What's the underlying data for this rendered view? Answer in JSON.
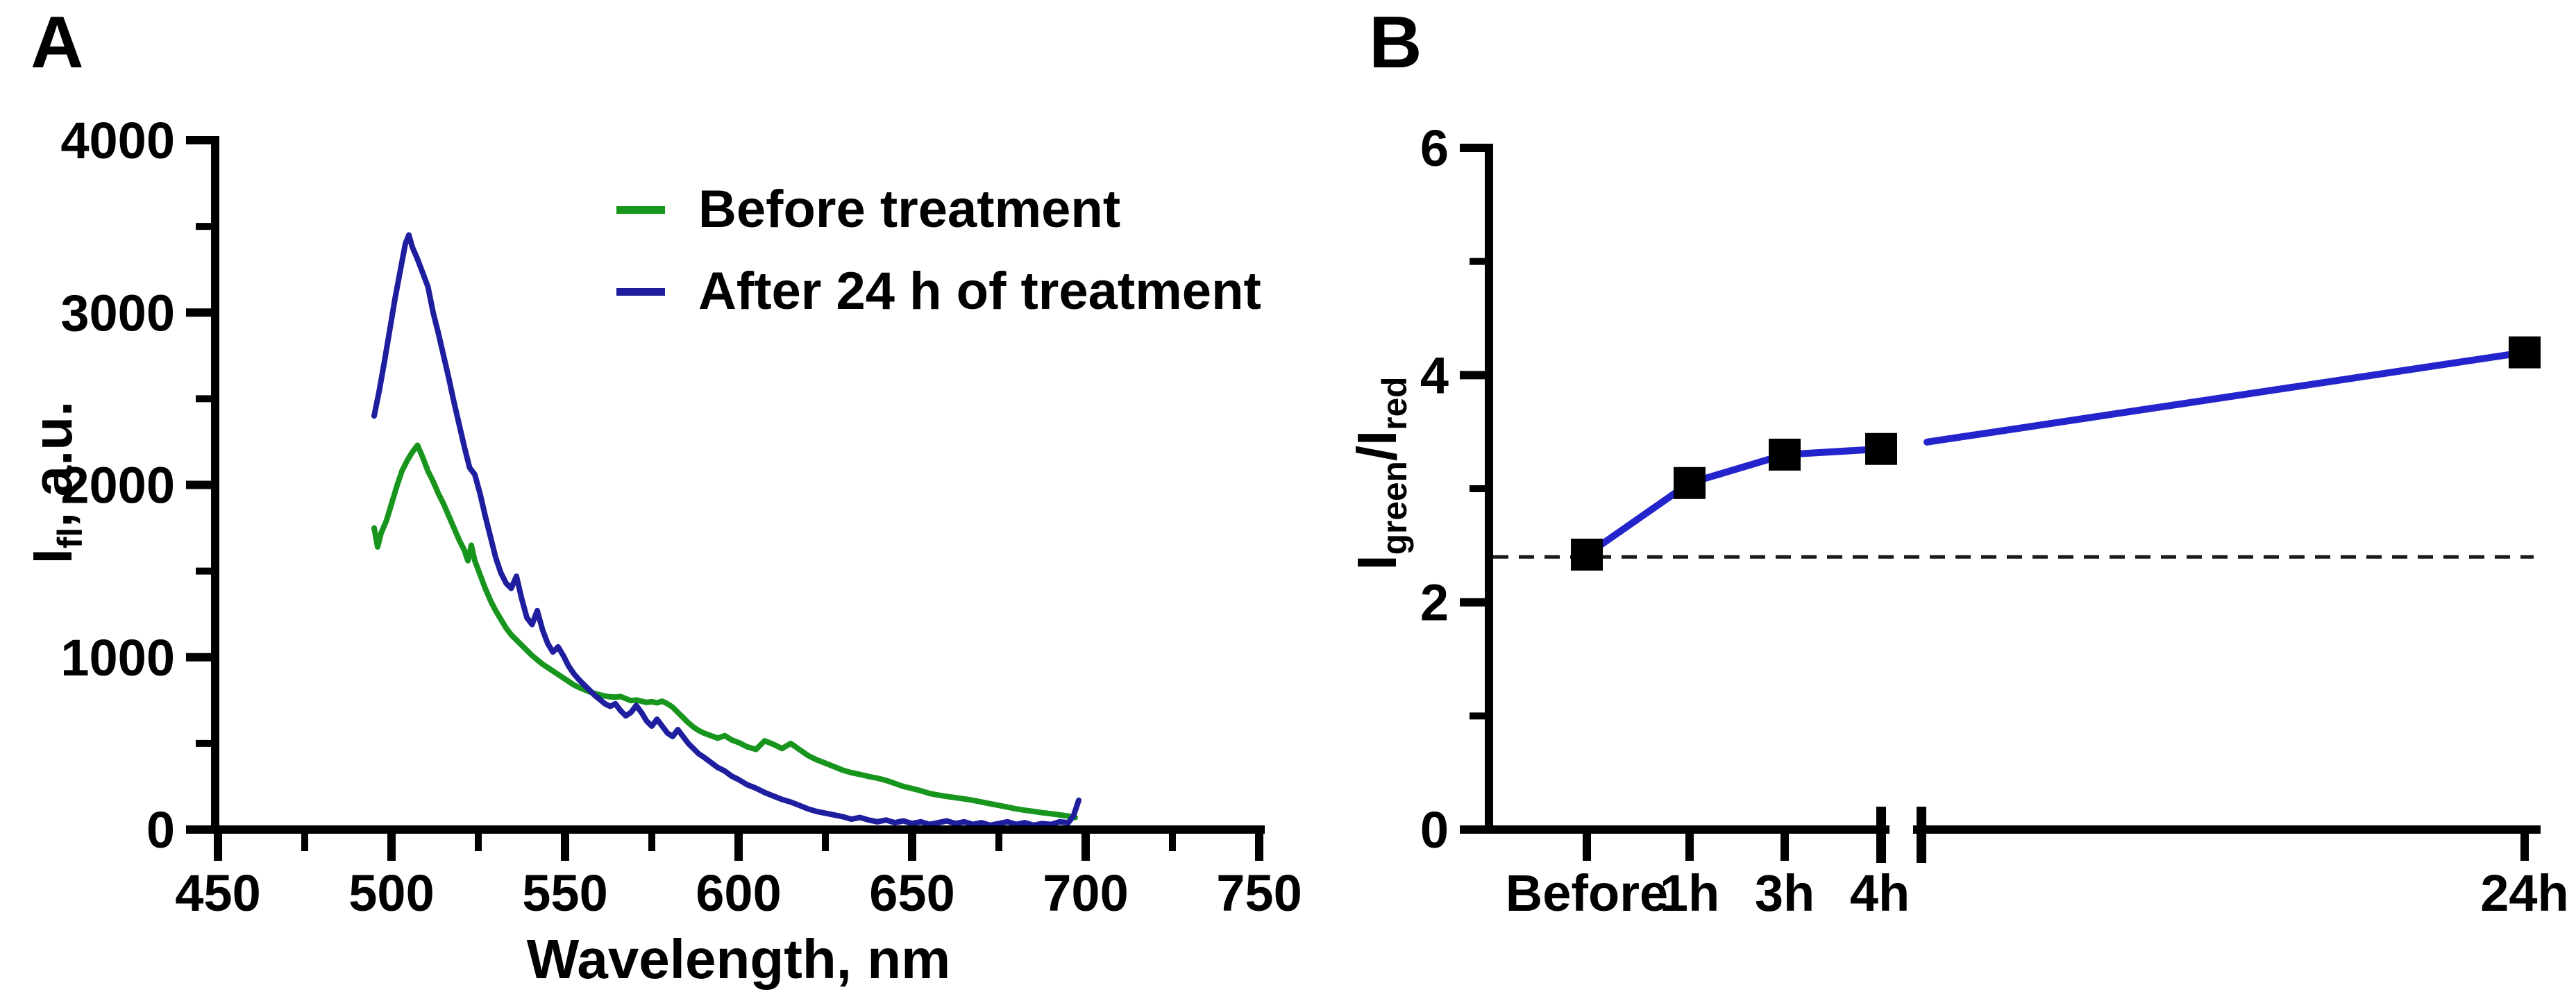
{
  "figure": {
    "background": "#ffffff",
    "text_color": "#000000"
  },
  "panels": {
    "a": {
      "label": "A",
      "y_axis_title": {
        "base": "I",
        "sub": "fl",
        "rest": ", a.u."
      },
      "x_axis_title": "Wavelength, nm",
      "legend": [
        {
          "label": "Before treatment",
          "color": "#17951d"
        },
        {
          "label": "After 24 h of treatment",
          "color": "#1e1e9e"
        }
      ]
    },
    "b": {
      "label": "B",
      "y_axis_title": {
        "i1": "I",
        "sub1": "green",
        "i2": "/I",
        "sub2": "red"
      }
    }
  },
  "chart_data": [
    {
      "panel": "A",
      "type": "line",
      "xlabel": "Wavelength, nm",
      "ylabel": "I_fl, a.u.",
      "xlim": [
        450,
        750
      ],
      "ylim": [
        0,
        4000
      ],
      "x_ticks": [
        450,
        500,
        550,
        600,
        650,
        700,
        750
      ],
      "x_minor_ticks": [
        475,
        525,
        575,
        625,
        675,
        725
      ],
      "y_ticks": [
        0,
        1000,
        2000,
        3000,
        4000
      ],
      "y_minor_ticks": [
        500,
        1500,
        2500,
        3500
      ],
      "grid": false,
      "legend_position": "top-right-inside",
      "series": [
        {
          "name": "Before treatment",
          "color": "#17951d",
          "linewidth": 8,
          "points": [
            [
              495,
              1750
            ],
            [
              496,
              1640
            ],
            [
              497,
              1720
            ],
            [
              498.5,
              1790
            ],
            [
              500,
              1890
            ],
            [
              501.5,
              1990
            ],
            [
              503,
              2080
            ],
            [
              504.5,
              2140
            ],
            [
              506,
              2190
            ],
            [
              507.5,
              2230
            ],
            [
              509,
              2160
            ],
            [
              510.5,
              2080
            ],
            [
              512,
              2020
            ],
            [
              513.5,
              1950
            ],
            [
              515,
              1890
            ],
            [
              516.5,
              1820
            ],
            [
              518,
              1750
            ],
            [
              519.5,
              1680
            ],
            [
              521,
              1620
            ],
            [
              522,
              1560
            ],
            [
              523,
              1650
            ],
            [
              524,
              1560
            ],
            [
              525.5,
              1480
            ],
            [
              527,
              1400
            ],
            [
              528.5,
              1330
            ],
            [
              530,
              1270
            ],
            [
              531.5,
              1220
            ],
            [
              533,
              1170
            ],
            [
              534.5,
              1130
            ],
            [
              536,
              1100
            ],
            [
              537.5,
              1070
            ],
            [
              539,
              1040
            ],
            [
              540.5,
              1010
            ],
            [
              542,
              985
            ],
            [
              543.5,
              960
            ],
            [
              545,
              940
            ],
            [
              546.5,
              920
            ],
            [
              548,
              900
            ],
            [
              549.5,
              880
            ],
            [
              551,
              860
            ],
            [
              552.5,
              840
            ],
            [
              554,
              825
            ],
            [
              555.5,
              812
            ],
            [
              557,
              800
            ],
            [
              558.5,
              790
            ],
            [
              560,
              782
            ],
            [
              561.5,
              775
            ],
            [
              563,
              770
            ],
            [
              564.5,
              768
            ],
            [
              566,
              772
            ],
            [
              567.5,
              760
            ],
            [
              569,
              748
            ],
            [
              570.5,
              752
            ],
            [
              572,
              745
            ],
            [
              573.5,
              738
            ],
            [
              575,
              742
            ],
            [
              576.5,
              735
            ],
            [
              578,
              745
            ],
            [
              579.5,
              730
            ],
            [
              581,
              710
            ],
            [
              582.5,
              680
            ],
            [
              584,
              650
            ],
            [
              585.5,
              620
            ],
            [
              587,
              595
            ],
            [
              588.5,
              575
            ],
            [
              590,
              560
            ],
            [
              592,
              545
            ],
            [
              594,
              530
            ],
            [
              596,
              545
            ],
            [
              598,
              520
            ],
            [
              600,
              505
            ],
            [
              602.5,
              480
            ],
            [
              605,
              465
            ],
            [
              607.5,
              515
            ],
            [
              610,
              495
            ],
            [
              612.5,
              470
            ],
            [
              615,
              500
            ],
            [
              617.5,
              465
            ],
            [
              620,
              430
            ],
            [
              622.5,
              405
            ],
            [
              625,
              385
            ],
            [
              627.5,
              365
            ],
            [
              630,
              345
            ],
            [
              632.5,
              330
            ],
            [
              635,
              320
            ],
            [
              637.5,
              308
            ],
            [
              640,
              298
            ],
            [
              642.5,
              285
            ],
            [
              645,
              268
            ],
            [
              647.5,
              250
            ],
            [
              650,
              238
            ],
            [
              652.5,
              225
            ],
            [
              655,
              210
            ],
            [
              657.5,
              200
            ],
            [
              660,
              192
            ],
            [
              662.5,
              185
            ],
            [
              665,
              178
            ],
            [
              667.5,
              170
            ],
            [
              670,
              160
            ],
            [
              672.5,
              150
            ],
            [
              675,
              140
            ],
            [
              677.5,
              130
            ],
            [
              680,
              120
            ],
            [
              682.5,
              112
            ],
            [
              685,
              105
            ],
            [
              687.5,
              98
            ],
            [
              690,
              92
            ],
            [
              692.5,
              85
            ],
            [
              695,
              78
            ],
            [
              697,
              70
            ]
          ]
        },
        {
          "name": "After 24 h of treatment",
          "color": "#1e1e9e",
          "linewidth": 8,
          "points": [
            [
              495,
              2400
            ],
            [
              496.5,
              2550
            ],
            [
              498,
              2720
            ],
            [
              499.5,
              2900
            ],
            [
              501,
              3080
            ],
            [
              502.5,
              3240
            ],
            [
              504,
              3400
            ],
            [
              505,
              3450
            ],
            [
              506,
              3380
            ],
            [
              507.5,
              3310
            ],
            [
              509,
              3230
            ],
            [
              510.5,
              3150
            ],
            [
              512,
              3000
            ],
            [
              513.5,
              2880
            ],
            [
              515,
              2750
            ],
            [
              516.5,
              2620
            ],
            [
              518,
              2480
            ],
            [
              519.5,
              2350
            ],
            [
              521,
              2220
            ],
            [
              522.5,
              2100
            ],
            [
              524,
              2060
            ],
            [
              525.5,
              1950
            ],
            [
              527,
              1820
            ],
            [
              528.5,
              1700
            ],
            [
              530,
              1580
            ],
            [
              531.5,
              1490
            ],
            [
              533,
              1430
            ],
            [
              534.5,
              1400
            ],
            [
              536,
              1470
            ],
            [
              537.5,
              1340
            ],
            [
              539,
              1230
            ],
            [
              540.5,
              1190
            ],
            [
              542,
              1270
            ],
            [
              543.5,
              1160
            ],
            [
              545,
              1080
            ],
            [
              546.5,
              1030
            ],
            [
              548,
              1060
            ],
            [
              549.5,
              1010
            ],
            [
              551,
              950
            ],
            [
              552.5,
              905
            ],
            [
              554,
              870
            ],
            [
              555.5,
              840
            ],
            [
              557,
              810
            ],
            [
              558.5,
              780
            ],
            [
              560,
              755
            ],
            [
              561.5,
              730
            ],
            [
              563,
              715
            ],
            [
              564.5,
              730
            ],
            [
              566,
              690
            ],
            [
              567.5,
              660
            ],
            [
              569,
              680
            ],
            [
              570.5,
              720
            ],
            [
              572,
              680
            ],
            [
              573.5,
              630
            ],
            [
              575,
              600
            ],
            [
              576.5,
              640
            ],
            [
              578,
              600
            ],
            [
              579.5,
              560
            ],
            [
              581,
              540
            ],
            [
              582.5,
              580
            ],
            [
              584,
              540
            ],
            [
              585.5,
              500
            ],
            [
              587,
              470
            ],
            [
              588.5,
              440
            ],
            [
              590,
              420
            ],
            [
              592,
              390
            ],
            [
              594,
              360
            ],
            [
              596,
              340
            ],
            [
              598,
              310
            ],
            [
              600,
              290
            ],
            [
              602.5,
              260
            ],
            [
              605,
              240
            ],
            [
              607.5,
              215
            ],
            [
              610,
              195
            ],
            [
              612.5,
              175
            ],
            [
              615,
              160
            ],
            [
              617.5,
              140
            ],
            [
              620,
              120
            ],
            [
              622.5,
              105
            ],
            [
              625,
              95
            ],
            [
              627.5,
              85
            ],
            [
              630,
              75
            ],
            [
              632.5,
              60
            ],
            [
              635,
              70
            ],
            [
              637.5,
              55
            ],
            [
              640,
              45
            ],
            [
              642.5,
              55
            ],
            [
              645,
              40
            ],
            [
              647.5,
              50
            ],
            [
              650,
              35
            ],
            [
              652.5,
              45
            ],
            [
              655,
              30
            ],
            [
              657.5,
              40
            ],
            [
              660,
              50
            ],
            [
              662.5,
              35
            ],
            [
              665,
              45
            ],
            [
              667.5,
              30
            ],
            [
              670,
              40
            ],
            [
              672.5,
              25
            ],
            [
              675,
              35
            ],
            [
              677.5,
              45
            ],
            [
              680,
              30
            ],
            [
              682.5,
              40
            ],
            [
              685,
              25
            ],
            [
              687.5,
              35
            ],
            [
              690,
              30
            ],
            [
              692.5,
              45
            ],
            [
              695,
              40
            ],
            [
              696.5,
              80
            ],
            [
              698,
              170
            ]
          ]
        }
      ]
    },
    {
      "panel": "B",
      "type": "line",
      "ylabel": "I_green/I_red",
      "ylim": [
        0,
        6
      ],
      "y_ticks": [
        0,
        2,
        4,
        6
      ],
      "y_minor_ticks": [
        1,
        3,
        5
      ],
      "categories": [
        "Before",
        "1h",
        "3h",
        "4h",
        "24h"
      ],
      "values": [
        2.42,
        3.05,
        3.3,
        3.35,
        4.2
      ],
      "baseline_dashed": 2.4,
      "axis_break_between": [
        "4h",
        "24h"
      ],
      "line_color": "#2424cd",
      "line_width": 10,
      "marker": "square",
      "marker_color": "#000000",
      "marker_size": 46,
      "grid": false
    }
  ]
}
